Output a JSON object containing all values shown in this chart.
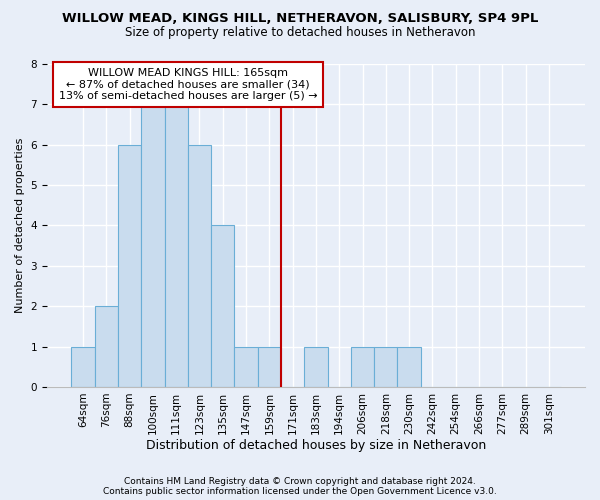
{
  "title1": "WILLOW MEAD, KINGS HILL, NETHERAVON, SALISBURY, SP4 9PL",
  "title2": "Size of property relative to detached houses in Netheravon",
  "xlabel": "Distribution of detached houses by size in Netheravon",
  "ylabel": "Number of detached properties",
  "bin_labels": [
    "64sqm",
    "76sqm",
    "88sqm",
    "100sqm",
    "111sqm",
    "123sqm",
    "135sqm",
    "147sqm",
    "159sqm",
    "171sqm",
    "183sqm",
    "194sqm",
    "206sqm",
    "218sqm",
    "230sqm",
    "242sqm",
    "254sqm",
    "266sqm",
    "277sqm",
    "289sqm",
    "301sqm"
  ],
  "bar_heights": [
    1,
    2,
    6,
    7,
    7,
    6,
    4,
    1,
    1,
    0,
    1,
    0,
    1,
    1,
    1,
    0,
    0,
    0,
    0,
    0,
    0
  ],
  "bar_color": "#c9dcee",
  "bar_edgecolor": "#6aaed6",
  "vline_x": 8.5,
  "vline_color": "#c00000",
  "ylim": [
    0,
    8
  ],
  "yticks": [
    0,
    1,
    2,
    3,
    4,
    5,
    6,
    7,
    8
  ],
  "annotation_line1": "WILLOW MEAD KINGS HILL: 165sqm",
  "annotation_line2": "← 87% of detached houses are smaller (34)",
  "annotation_line3": "13% of semi-detached houses are larger (5) →",
  "annotation_box_edgecolor": "#c00000",
  "footnote1": "Contains HM Land Registry data © Crown copyright and database right 2024.",
  "footnote2": "Contains public sector information licensed under the Open Government Licence v3.0.",
  "bg_color": "#e8eef8",
  "grid_color": "#ffffff",
  "title1_fontsize": 9.5,
  "title2_fontsize": 8.5,
  "xlabel_fontsize": 9,
  "ylabel_fontsize": 8,
  "tick_fontsize": 7.5,
  "annotation_fontsize": 8,
  "footnote_fontsize": 6.5
}
